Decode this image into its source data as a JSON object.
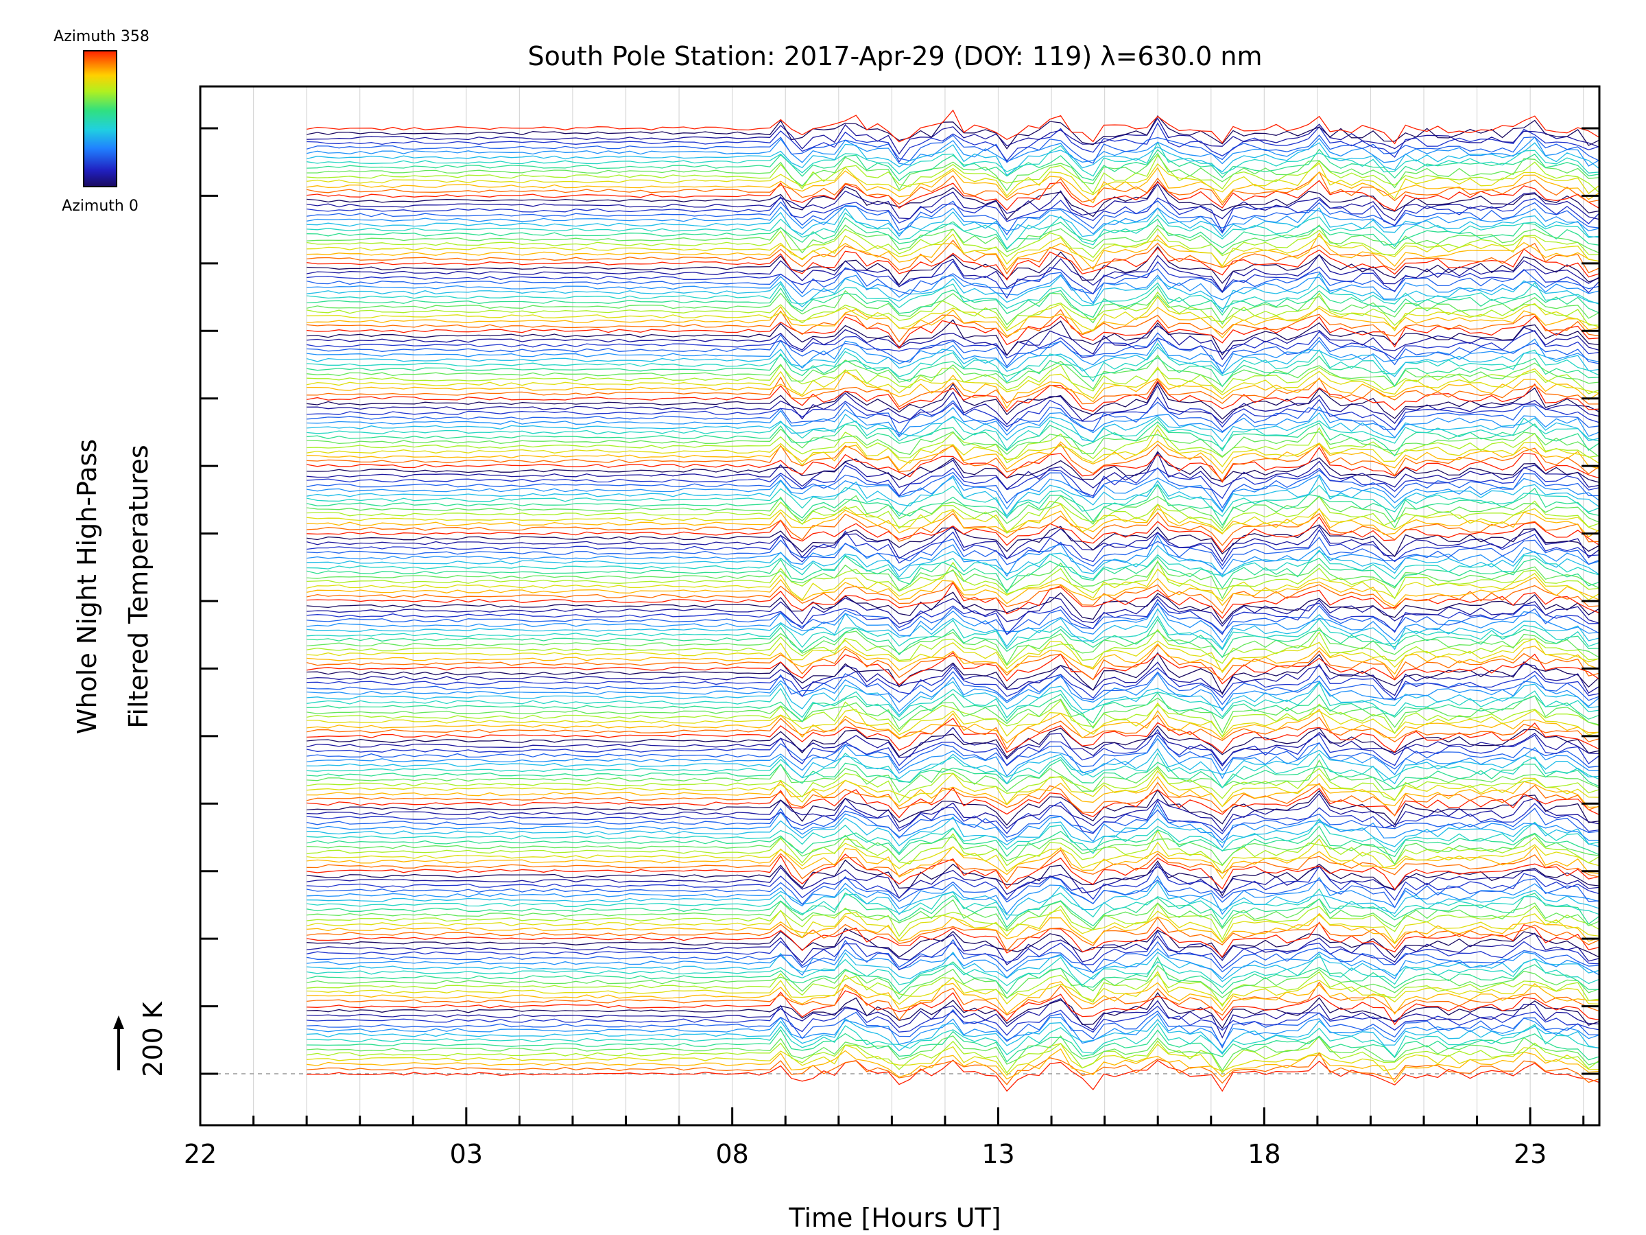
{
  "chart_data": {
    "type": "line",
    "title": "South Pole Station: 2017-Apr-29 (DOY: 119) λ=630.0 nm",
    "xlabel": "Time [Hours UT]",
    "ylabel_line1": "Whole Night High-Pass",
    "ylabel_line2": "Filtered Temperatures",
    "scale_bar_label": "200 K",
    "x_unit": "hours since 22 UT",
    "xlim": [
      0,
      26.3
    ],
    "x_ticks": [
      0,
      5,
      10,
      15,
      20,
      25
    ],
    "x_tick_labels": [
      "22",
      "03",
      "08",
      "13",
      "18",
      "23"
    ],
    "y_offsets_count": 15,
    "colorbar": {
      "max_label": "Azimuth  358",
      "min_label": "Azimuth  0",
      "range": [
        0,
        358
      ],
      "colormap": "rainbow"
    },
    "series_description": "Stacked high-pass filtered temperature traces; 14 azimuth traces per stack level, colored by azimuth",
    "data_start_hour": 2.0,
    "data_end_hour": 26.3,
    "event_hours": [
      11.0,
      11.2,
      12.2,
      13.2,
      14.1,
      15.2,
      16.1,
      16.7,
      18.0,
      19.2,
      21.0,
      22.4,
      25.0,
      26.2
    ],
    "baseline_K": 200
  }
}
